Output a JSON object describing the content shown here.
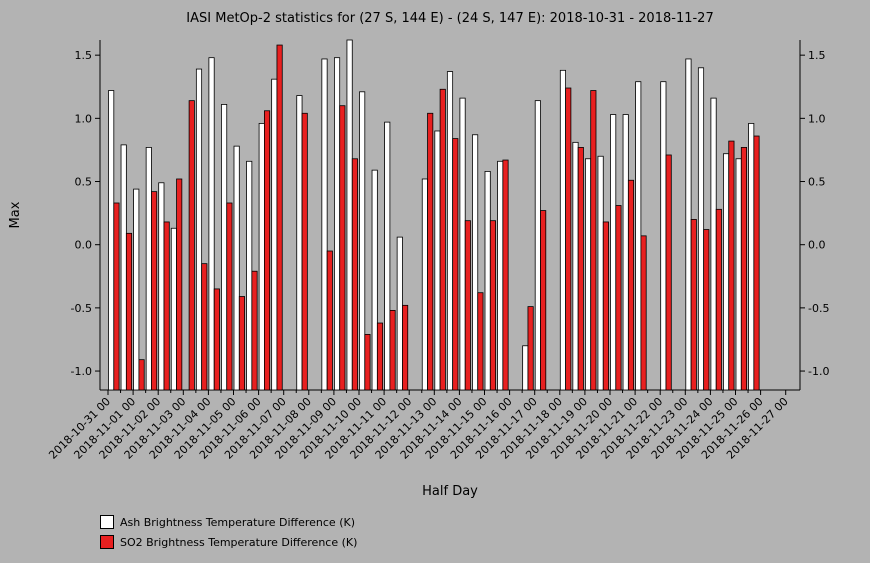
{
  "chart_data": {
    "type": "bar",
    "title": "IASI MetOp-2 statistics for (27 S, 144 E) - (24 S, 147 E): 2018-10-31 - 2018-11-27",
    "xlabel": "Half Day",
    "ylabel": "Max",
    "ylim": [
      -1.15,
      1.62
    ],
    "yticks": [
      -1.0,
      -0.5,
      0.0,
      0.5,
      1.0,
      1.5
    ],
    "ytick_labels": [
      "-1.0",
      "-0.5",
      "0.0",
      "0.5",
      "1.0",
      "1.5"
    ],
    "xtick_labels": [
      "2018-10-31 00",
      "2018-11-01 00",
      "2018-11-02 00",
      "2018-11-03 00",
      "2018-11-04 00",
      "2018-11-05 00",
      "2018-11-06 00",
      "2018-11-07 00",
      "2018-11-08 00",
      "2018-11-09 00",
      "2018-11-10 00",
      "2018-11-11 00",
      "2018-11-12 00",
      "2018-11-13 00",
      "2018-11-14 00",
      "2018-11-15 00",
      "2018-11-16 00",
      "2018-11-17 00",
      "2018-11-18 00",
      "2018-11-19 00",
      "2018-11-20 00",
      "2018-11-21 00",
      "2018-11-22 00",
      "2018-11-23 00",
      "2018-11-24 00",
      "2018-11-25 00",
      "2018-11-26 00",
      "2018-11-27 00"
    ],
    "grid": false,
    "legend_position": "bottom-left",
    "series": [
      {
        "name": "Ash Brightness Temperature Difference (K)",
        "color": "#ffffff",
        "values": [
          1.22,
          0.79,
          0.44,
          0.77,
          0.49,
          0.13,
          null,
          1.39,
          1.48,
          1.11,
          0.78,
          0.66,
          0.96,
          1.31,
          null,
          1.18,
          null,
          1.47,
          1.48,
          1.62,
          1.21,
          0.59,
          0.97,
          0.06,
          null,
          0.52,
          0.9,
          1.37,
          1.16,
          0.87,
          0.58,
          0.66,
          null,
          -0.8,
          1.14,
          null,
          1.38,
          0.81,
          0.68,
          0.7,
          1.03,
          1.03,
          1.29,
          null,
          1.29,
          null,
          1.47,
          1.4,
          1.16,
          0.72,
          0.68,
          0.96
        ]
      },
      {
        "name": "SO2 Brightness Temperature Difference (K)",
        "color": "#e82020",
        "values": [
          0.33,
          0.09,
          -0.91,
          0.42,
          0.18,
          0.52,
          1.14,
          -0.15,
          -0.35,
          0.33,
          -0.41,
          -0.21,
          1.06,
          1.58,
          null,
          1.04,
          null,
          -0.05,
          1.1,
          0.68,
          -0.71,
          -0.62,
          -0.52,
          -0.48,
          null,
          1.04,
          1.23,
          0.84,
          0.19,
          -0.38,
          0.19,
          0.67,
          null,
          -0.49,
          0.27,
          null,
          1.24,
          0.77,
          1.22,
          0.18,
          0.31,
          0.51,
          0.07,
          null,
          0.71,
          null,
          0.2,
          0.12,
          0.28,
          0.82,
          0.77,
          0.86
        ]
      }
    ]
  }
}
